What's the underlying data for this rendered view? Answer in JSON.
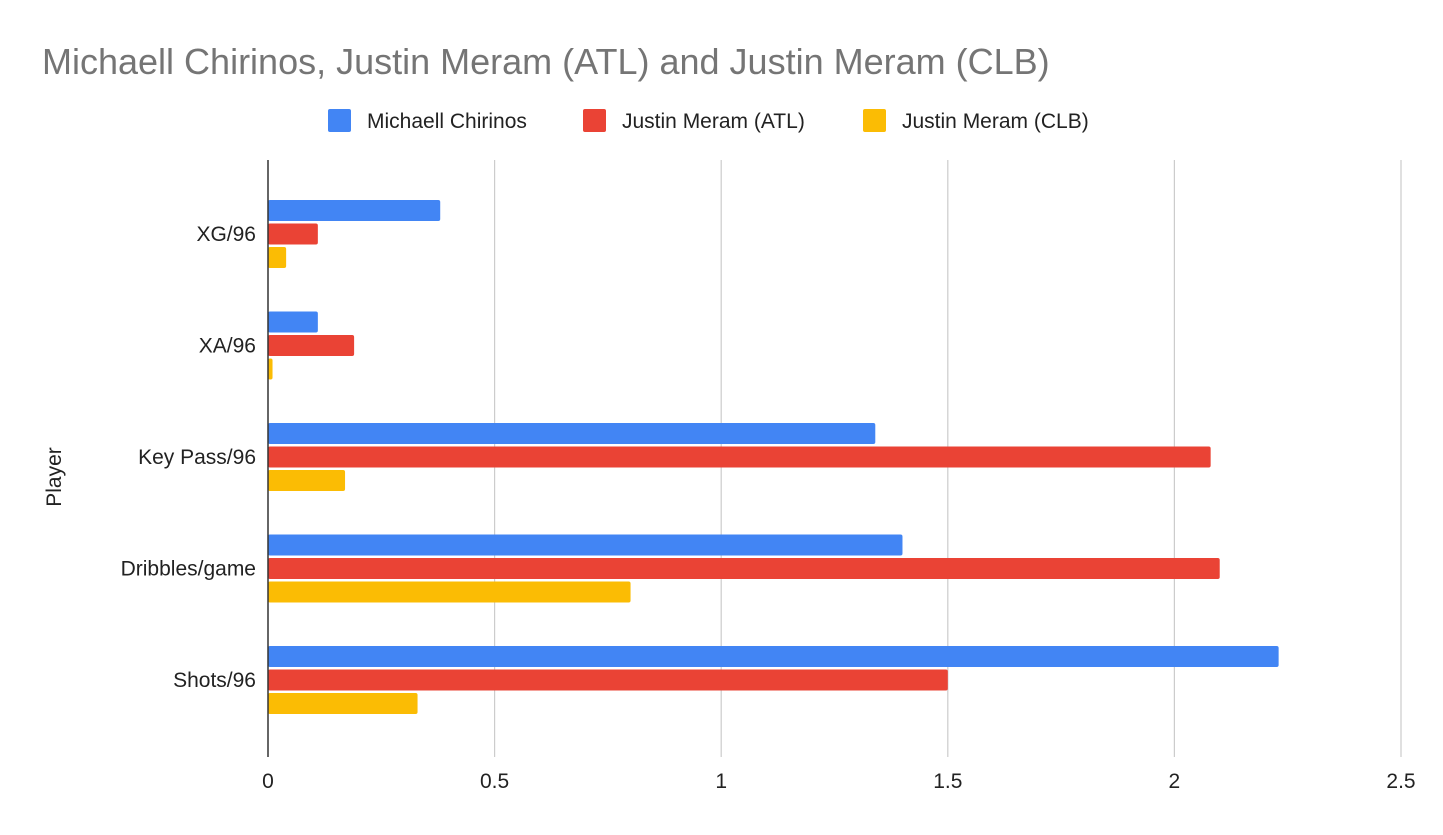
{
  "chart_data": {
    "type": "bar",
    "orientation": "horizontal",
    "title": "Michaell Chirinos, Justin Meram (ATL) and Justin Meram (CLB)",
    "ylabel": "Player",
    "xlabel": "",
    "categories": [
      "XG/96",
      "XA/96",
      "Key Pass/96",
      "Dribbles/game",
      "Shots/96"
    ],
    "series": [
      {
        "name": "Michaell Chirinos",
        "color": "#4285F4",
        "values": [
          0.38,
          0.11,
          1.34,
          1.4,
          2.23
        ]
      },
      {
        "name": "Justin Meram (ATL)",
        "color": "#EA4335",
        "values": [
          0.11,
          0.19,
          2.08,
          2.1,
          1.5
        ]
      },
      {
        "name": "Justin Meram (CLB)",
        "color": "#FBBC04",
        "values": [
          0.04,
          0.01,
          0.17,
          0.8,
          0.33
        ]
      }
    ],
    "xlim": [
      0,
      2.5
    ],
    "xticks": [
      "0",
      "0.5",
      "1",
      "1.5",
      "2",
      "2.5"
    ],
    "grid": true,
    "legend_position": "top"
  }
}
